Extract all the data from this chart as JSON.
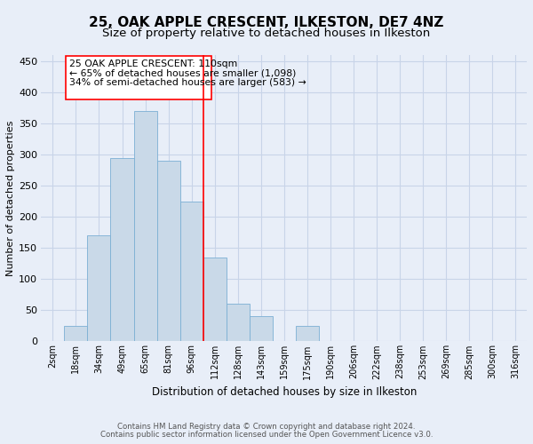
{
  "title": "25, OAK APPLE CRESCENT, ILKESTON, DE7 4NZ",
  "subtitle": "Size of property relative to detached houses in Ilkeston",
  "xlabel": "Distribution of detached houses by size in Ilkeston",
  "ylabel": "Number of detached properties",
  "categories": [
    "2sqm",
    "18sqm",
    "34sqm",
    "49sqm",
    "65sqm",
    "81sqm",
    "96sqm",
    "112sqm",
    "128sqm",
    "143sqm",
    "159sqm",
    "175sqm",
    "190sqm",
    "206sqm",
    "222sqm",
    "238sqm",
    "253sqm",
    "269sqm",
    "285sqm",
    "300sqm",
    "316sqm"
  ],
  "values": [
    0,
    25,
    170,
    295,
    370,
    290,
    225,
    135,
    60,
    40,
    0,
    25,
    0,
    0,
    0,
    0,
    0,
    0,
    0,
    0,
    0
  ],
  "bar_color": "#c9d9e8",
  "bar_edge_color": "#7bafd4",
  "grid_color": "#c8d4e8",
  "bg_color": "#e8eef8",
  "marker_index": 7,
  "marker_label": "25 OAK APPLE CRESCENT: 110sqm",
  "annotation_line1": "← 65% of detached houses are smaller (1,098)",
  "annotation_line2": "34% of semi-detached houses are larger (583) →",
  "footer1": "Contains HM Land Registry data © Crown copyright and database right 2024.",
  "footer2": "Contains public sector information licensed under the Open Government Licence v3.0.",
  "ylim": [
    0,
    460
  ],
  "yticks": [
    0,
    50,
    100,
    150,
    200,
    250,
    300,
    350,
    400,
    450
  ],
  "title_fontsize": 11,
  "subtitle_fontsize": 9.5,
  "bar_width": 1.0
}
